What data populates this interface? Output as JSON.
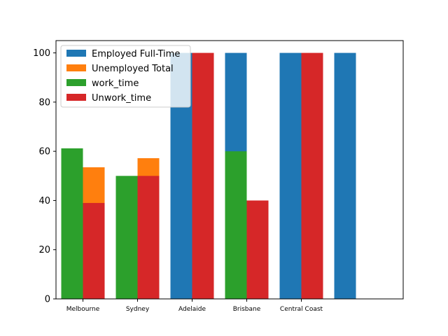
{
  "chart_data": {
    "type": "bar",
    "title": "",
    "xlabel": "",
    "ylabel": "",
    "categories": [
      "Melbourne",
      "Sydney",
      "Adelaide",
      "Brisbane",
      "Central Coast"
    ],
    "ylim": [
      0,
      105
    ],
    "yticks": [
      0,
      20,
      40,
      60,
      80,
      100
    ],
    "grid": false,
    "legend_position": "top-left",
    "series": [
      {
        "name": "Employed Full-Time",
        "color": "#1f77b4",
        "slot": "left",
        "values": [
          null,
          null,
          100,
          100,
          100
        ]
      },
      {
        "name": "Unemployed Total",
        "color": "#ff7f0e",
        "slot": "right",
        "values": [
          53.5,
          57.2,
          null,
          null,
          null
        ]
      },
      {
        "name": "work_time",
        "color": "#2ca02c",
        "slot": "left",
        "values": [
          61.2,
          50,
          null,
          60,
          null
        ]
      },
      {
        "name": "Unwork_time",
        "color": "#d62728",
        "slot": "right",
        "values": [
          39,
          50,
          100,
          40,
          100
        ]
      }
    ],
    "extra_bar": {
      "series": "Employed Full-Time",
      "position_index": 5,
      "value": 100
    }
  }
}
